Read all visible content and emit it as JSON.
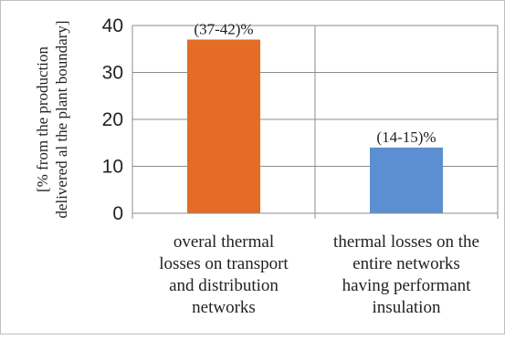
{
  "chart_data": {
    "type": "bar",
    "categories": [
      "overal thermal losses on transport and distribution networks",
      "thermal losses on the entire networks having performant insulation"
    ],
    "category_lines": [
      [
        "overal thermal",
        "losses on transport",
        "and distribution",
        "networks"
      ],
      [
        "thermal losses on the",
        "entire networks",
        "having performant",
        "insulation"
      ]
    ],
    "values": [
      37,
      14
    ],
    "data_labels": [
      "(37-42)%",
      "(14-15)%"
    ],
    "colors": [
      "#E46C24",
      "#5B8FD1"
    ],
    "ylabel_lines": [
      "[% from the production",
      "delivered al the plant boundary]"
    ],
    "ylim": [
      0,
      40
    ],
    "yticks": [
      0,
      10,
      20,
      30,
      40
    ],
    "xlabel": "",
    "title": "",
    "grid": true,
    "legend": false
  }
}
